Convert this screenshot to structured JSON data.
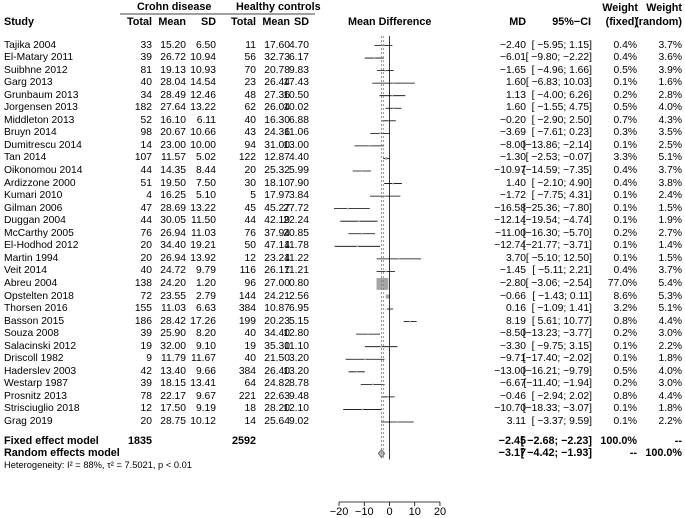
{
  "chart_data": {
    "type": "forest",
    "group_headers": {
      "crohn": "Crohn disease",
      "healthy": "Healthy controls"
    },
    "column_headers": {
      "study": "Study",
      "total1": "Total",
      "mean1": "Mean",
      "sd1": "SD",
      "total2": "Total",
      "mean2": "Mean",
      "sd2": "SD",
      "plot": "Mean Difference",
      "md": "MD",
      "ci": "95%−CI",
      "wf_top": "Weight",
      "wf_bot": "(fixed)",
      "wr_top": "Weight",
      "wr_bot": "(random)"
    },
    "xlim": [
      -22,
      22
    ],
    "xticks": [
      -20,
      -10,
      0,
      10,
      20
    ],
    "xtick_labels": [
      "−20",
      "−10",
      "0",
      "10",
      "20"
    ],
    "studies": [
      {
        "study": "Tajika 2004",
        "n1": "33",
        "m1": "15.20",
        "s1": "6.50",
        "n2": "11",
        "m2": "17.60",
        "s2": "4.70",
        "md": -2.4,
        "lo": -5.95,
        "hi": 1.15,
        "md_txt": "−2.40",
        "ci_txt": "[ −5.95; 1.15]",
        "wf": 0.4,
        "wf_txt": "0.4%",
        "wr_txt": "3.7%"
      },
      {
        "study": "El-Matary 2011",
        "n1": "39",
        "m1": "26.72",
        "s1": "10.94",
        "n2": "56",
        "m2": "32.73",
        "s2": "6.17",
        "md": -6.01,
        "lo": -9.8,
        "hi": -2.22,
        "md_txt": "−6.01",
        "ci_txt": "[ −9.80; −2.22]",
        "wf": 0.4,
        "wf_txt": "0.4%",
        "wr_txt": "3.6%"
      },
      {
        "study": "Suibhne 2012",
        "n1": "81",
        "m1": "19.13",
        "s1": "10.93",
        "n2": "70",
        "m2": "20.78",
        "s2": "9.83",
        "md": -1.65,
        "lo": -4.96,
        "hi": 1.66,
        "md_txt": "−1.65",
        "ci_txt": "[ −4.96; 1.66]",
        "wf": 0.5,
        "wf_txt": "0.5%",
        "wr_txt": "3.9%"
      },
      {
        "study": "Garg 2013",
        "n1": "40",
        "m1": "28.04",
        "s1": "14.54",
        "n2": "23",
        "m2": "26.44",
        "s2": "17.43",
        "md": 1.6,
        "lo": -6.83,
        "hi": 10.03,
        "md_txt": "1.60",
        "ci_txt": "[ −6.83; 10.03]",
        "wf": 0.1,
        "wf_txt": "0.1%",
        "wr_txt": "1.6%"
      },
      {
        "study": "Grunbaum 2013",
        "n1": "34",
        "m1": "28.49",
        "s1": "12.46",
        "n2": "48",
        "m2": "27.36",
        "s2": "10.50",
        "md": 1.13,
        "lo": -4.0,
        "hi": 6.26,
        "md_txt": "1.13",
        "ci_txt": "[ −4.00; 6.26]",
        "wf": 0.2,
        "wf_txt": "0.2%",
        "wr_txt": "2.8%"
      },
      {
        "study": "Jorgensen 2013",
        "n1": "182",
        "m1": "27.64",
        "s1": "13.22",
        "n2": "62",
        "m2": "26.04",
        "s2": "10.02",
        "md": 1.6,
        "lo": -1.55,
        "hi": 4.75,
        "md_txt": "1.60",
        "ci_txt": "[ −1.55; 4.75]",
        "wf": 0.5,
        "wf_txt": "0.5%",
        "wr_txt": "4.0%"
      },
      {
        "study": "Middleton 2013",
        "n1": "52",
        "m1": "16.10",
        "s1": "6.11",
        "n2": "40",
        "m2": "16.30",
        "s2": "6.88",
        "md": -0.2,
        "lo": -2.9,
        "hi": 2.5,
        "md_txt": "−0.20",
        "ci_txt": "[ −2.90; 2.50]",
        "wf": 0.7,
        "wf_txt": "0.7%",
        "wr_txt": "4.3%"
      },
      {
        "study": "Bruyn 2014",
        "n1": "98",
        "m1": "20.67",
        "s1": "10.66",
        "n2": "43",
        "m2": "24.36",
        "s2": "11.06",
        "md": -3.69,
        "lo": -7.61,
        "hi": 0.23,
        "md_txt": "−3.69",
        "ci_txt": "[ −7.61; 0.23]",
        "wf": 0.3,
        "wf_txt": "0.3%",
        "wr_txt": "3.5%"
      },
      {
        "study": "Dumitrescu 2014",
        "n1": "14",
        "m1": "23.00",
        "s1": "10.00",
        "n2": "94",
        "m2": "31.00",
        "s2": "13.00",
        "md": -8.0,
        "lo": -13.86,
        "hi": -2.14,
        "md_txt": "−8.00",
        "ci_txt": "[−13.86; −2.14]",
        "wf": 0.1,
        "wf_txt": "0.1%",
        "wr_txt": "2.5%"
      },
      {
        "study": "Tan 2014",
        "n1": "107",
        "m1": "11.57",
        "s1": "5.02",
        "n2": "122",
        "m2": "12.87",
        "s2": "4.40",
        "md": -1.3,
        "lo": -2.53,
        "hi": -0.07,
        "md_txt": "−1.30",
        "ci_txt": "[ −2.53; −0.07]",
        "wf": 3.3,
        "wf_txt": "3.3%",
        "wr_txt": "5.1%"
      },
      {
        "study": "Oikonomou 2014",
        "n1": "44",
        "m1": "14.35",
        "s1": "8.44",
        "n2": "20",
        "m2": "25.32",
        "s2": "5.99",
        "md": -10.97,
        "lo": -14.59,
        "hi": -7.35,
        "md_txt": "−10.97",
        "ci_txt": "[−14.59; −7.35]",
        "wf": 0.4,
        "wf_txt": "0.4%",
        "wr_txt": "3.7%"
      },
      {
        "study": "Ardizzone 2000",
        "n1": "51",
        "m1": "19.50",
        "s1": "7.50",
        "n2": "30",
        "m2": "18.10",
        "s2": "7.90",
        "md": 1.4,
        "lo": -2.1,
        "hi": 4.9,
        "md_txt": "1.40",
        "ci_txt": "[ −2.10; 4.90]",
        "wf": 0.4,
        "wf_txt": "0.4%",
        "wr_txt": "3.8%"
      },
      {
        "study": "Kumari 2010",
        "n1": "4",
        "m1": "16.25",
        "s1": "5.10",
        "n2": "5",
        "m2": "17.97",
        "s2": "3.84",
        "md": -1.72,
        "lo": -7.75,
        "hi": 4.31,
        "md_txt": "−1.72",
        "ci_txt": "[ −7.75; 4.31]",
        "wf": 0.1,
        "wf_txt": "0.1%",
        "wr_txt": "2.4%"
      },
      {
        "study": "Gilman 2006",
        "n1": "47",
        "m1": "28.69",
        "s1": "13.22",
        "n2": "45",
        "m2": "45.27",
        "s2": "27.72",
        "md": -16.58,
        "lo": -25.36,
        "hi": -7.8,
        "md_txt": "−16.58",
        "ci_txt": "[−25.36; −7.80]",
        "wf": 0.1,
        "wf_txt": "0.1%",
        "wr_txt": "1.5%"
      },
      {
        "study": "Duggan 2004",
        "n1": "44",
        "m1": "30.05",
        "s1": "11.50",
        "n2": "44",
        "m2": "42.19",
        "s2": "22.24",
        "md": -12.14,
        "lo": -19.54,
        "hi": -4.74,
        "md_txt": "−12.14",
        "ci_txt": "[−19.54; −4.74]",
        "wf": 0.1,
        "wf_txt": "0.1%",
        "wr_txt": "1.9%"
      },
      {
        "study": "McCarthy 2005",
        "n1": "76",
        "m1": "26.94",
        "s1": "11.03",
        "n2": "76",
        "m2": "37.94",
        "s2": "20.85",
        "md": -11.0,
        "lo": -16.3,
        "hi": -5.7,
        "md_txt": "−11.00",
        "ci_txt": "[−16.30; −5.70]",
        "wf": 0.2,
        "wf_txt": "0.2%",
        "wr_txt": "2.7%"
      },
      {
        "study": "El-Hodhod 2012",
        "n1": "20",
        "m1": "34.40",
        "s1": "19.21",
        "n2": "50",
        "m2": "47.14",
        "s2": "11.78",
        "md": -12.74,
        "lo": -21.77,
        "hi": -3.71,
        "md_txt": "−12.74",
        "ci_txt": "[−21.77; −3.71]",
        "wf": 0.1,
        "wf_txt": "0.1%",
        "wr_txt": "1.4%"
      },
      {
        "study": "Martin 1994",
        "n1": "20",
        "m1": "26.94",
        "s1": "13.92",
        "n2": "12",
        "m2": "23.24",
        "s2": "11.22",
        "md": 3.7,
        "lo": -5.1,
        "hi": 12.5,
        "md_txt": "3.70",
        "ci_txt": "[ −5.10; 12.50]",
        "wf": 0.1,
        "wf_txt": "0.1%",
        "wr_txt": "1.5%"
      },
      {
        "study": "Veit 2014",
        "n1": "40",
        "m1": "24.72",
        "s1": "9.79",
        "n2": "116",
        "m2": "26.17",
        "s2": "11.21",
        "md": -1.45,
        "lo": -5.11,
        "hi": 2.21,
        "md_txt": "−1.45",
        "ci_txt": "[ −5.11; 2.21]",
        "wf": 0.4,
        "wf_txt": "0.4%",
        "wr_txt": "3.7%"
      },
      {
        "study": "Abreu 2004",
        "n1": "138",
        "m1": "24.20",
        "s1": "1.20",
        "n2": "96",
        "m2": "27.00",
        "s2": "0.80",
        "md": -2.8,
        "lo": -3.06,
        "hi": -2.54,
        "md_txt": "−2.80",
        "ci_txt": "[ −3.06; −2.54]",
        "wf": 77.0,
        "wf_txt": "77.0%",
        "wr_txt": "5.4%"
      },
      {
        "study": "Opstelten 2018",
        "n1": "72",
        "m1": "23.55",
        "s1": "2.79",
        "n2": "144",
        "m2": "24.21",
        "s2": "2.56",
        "md": -0.66,
        "lo": -1.43,
        "hi": 0.11,
        "md_txt": "−0.66",
        "ci_txt": "[ −1.43; 0.11]",
        "wf": 8.6,
        "wf_txt": "8.6%",
        "wr_txt": "5.3%"
      },
      {
        "study": "Thorsen 2016",
        "n1": "155",
        "m1": "11.03",
        "s1": "6.63",
        "n2": "384",
        "m2": "10.87",
        "s2": "6.95",
        "md": 0.16,
        "lo": -1.09,
        "hi": 1.41,
        "md_txt": "0.16",
        "ci_txt": "[ −1.09; 1.41]",
        "wf": 3.2,
        "wf_txt": "3.2%",
        "wr_txt": "5.1%"
      },
      {
        "study": "Basson 2015",
        "n1": "186",
        "m1": "28.42",
        "s1": "17.26",
        "n2": "199",
        "m2": "20.23",
        "s2": "5.15",
        "md": 8.19,
        "lo": 5.61,
        "hi": 10.77,
        "md_txt": "8.19",
        "ci_txt": "[ 5.61; 10.77]",
        "wf": 0.8,
        "wf_txt": "0.8%",
        "wr_txt": "4.4%"
      },
      {
        "study": "Souza 2008",
        "n1": "39",
        "m1": "25.90",
        "s1": "8.20",
        "n2": "40",
        "m2": "34.40",
        "s2": "12.80",
        "md": -8.5,
        "lo": -13.23,
        "hi": -3.77,
        "md_txt": "−8.50",
        "ci_txt": "[−13.23; −3.77]",
        "wf": 0.2,
        "wf_txt": "0.2%",
        "wr_txt": "3.0%"
      },
      {
        "study": "Salacinski 2012",
        "n1": "19",
        "m1": "32.00",
        "s1": "9.10",
        "n2": "19",
        "m2": "35.30",
        "s2": "11.10",
        "md": -3.3,
        "lo": -9.75,
        "hi": 3.15,
        "md_txt": "−3.30",
        "ci_txt": "[ −9.75; 3.15]",
        "wf": 0.1,
        "wf_txt": "0.1%",
        "wr_txt": "2.2%"
      },
      {
        "study": "Driscoll 1982",
        "n1": "9",
        "m1": "11.79",
        "s1": "11.67",
        "n2": "40",
        "m2": "21.50",
        "s2": "3.20",
        "md": -9.71,
        "lo": -17.4,
        "hi": -2.02,
        "md_txt": "−9.71",
        "ci_txt": "[−17.40; −2.02]",
        "wf": 0.1,
        "wf_txt": "0.1%",
        "wr_txt": "1.8%"
      },
      {
        "study": "Haderslev 2003",
        "n1": "42",
        "m1": "13.40",
        "s1": "9.66",
        "n2": "384",
        "m2": "26.40",
        "s2": "13.20",
        "md": -13.0,
        "lo": -16.21,
        "hi": -9.79,
        "md_txt": "−13.00",
        "ci_txt": "[−16.21; −9.79]",
        "wf": 0.5,
        "wf_txt": "0.5%",
        "wr_txt": "4.0%"
      },
      {
        "study": "Westarp 1987",
        "n1": "39",
        "m1": "18.15",
        "s1": "13.41",
        "n2": "64",
        "m2": "24.82",
        "s2": "8.78",
        "md": -6.67,
        "lo": -11.4,
        "hi": -1.94,
        "md_txt": "−6.67",
        "ci_txt": "[−11.40; −1.94]",
        "wf": 0.2,
        "wf_txt": "0.2%",
        "wr_txt": "3.0%"
      },
      {
        "study": "Prosnitz 2013",
        "n1": "78",
        "m1": "22.17",
        "s1": "9.67",
        "n2": "221",
        "m2": "22.63",
        "s2": "9.48",
        "md": -0.46,
        "lo": -2.94,
        "hi": 2.02,
        "md_txt": "−0.46",
        "ci_txt": "[ −2.94; 2.02]",
        "wf": 0.8,
        "wf_txt": "0.8%",
        "wr_txt": "4.4%"
      },
      {
        "study": "Strisciuglio 2018",
        "n1": "12",
        "m1": "17.50",
        "s1": "9.19",
        "n2": "18",
        "m2": "28.20",
        "s2": "12.10",
        "md": -10.7,
        "lo": -18.33,
        "hi": -3.07,
        "md_txt": "−10.70",
        "ci_txt": "[−18.33; −3.07]",
        "wf": 0.1,
        "wf_txt": "0.1%",
        "wr_txt": "1.8%"
      },
      {
        "study": "Grag 2019",
        "n1": "20",
        "m1": "28.75",
        "s1": "10.12",
        "n2": "14",
        "m2": "25.64",
        "s2": "9.02",
        "md": 3.11,
        "lo": -3.37,
        "hi": 9.59,
        "md_txt": "3.11",
        "ci_txt": "[ −3.37; 9.59]",
        "wf": 0.1,
        "wf_txt": "0.1%",
        "wr_txt": "2.2%"
      }
    ],
    "fixed": {
      "label": "Fixed effect model",
      "n1": "1835",
      "n2": "2592",
      "md": -2.45,
      "lo": -2.68,
      "hi": -2.23,
      "md_txt": "−2.45",
      "ci_txt": "[ −2.68; −2.23]",
      "wf_txt": "100.0%",
      "wr_txt": "--"
    },
    "random": {
      "label": "Random effects model",
      "md": -3.17,
      "lo": -4.42,
      "hi": -1.93,
      "md_txt": "−3.17",
      "ci_txt": "[ −4.42; −1.93]",
      "wf_txt": "--",
      "wr_txt": "100.0%"
    },
    "heterogeneity": "Heterogeneity: I² = 88%, τ² = 7.5021, p < 0.01",
    "colors": {
      "square": "#a6a6a6",
      "line": "#000000",
      "fixed_line": "#7f7f7f",
      "diamond_fill": "#c0c0c0"
    }
  }
}
